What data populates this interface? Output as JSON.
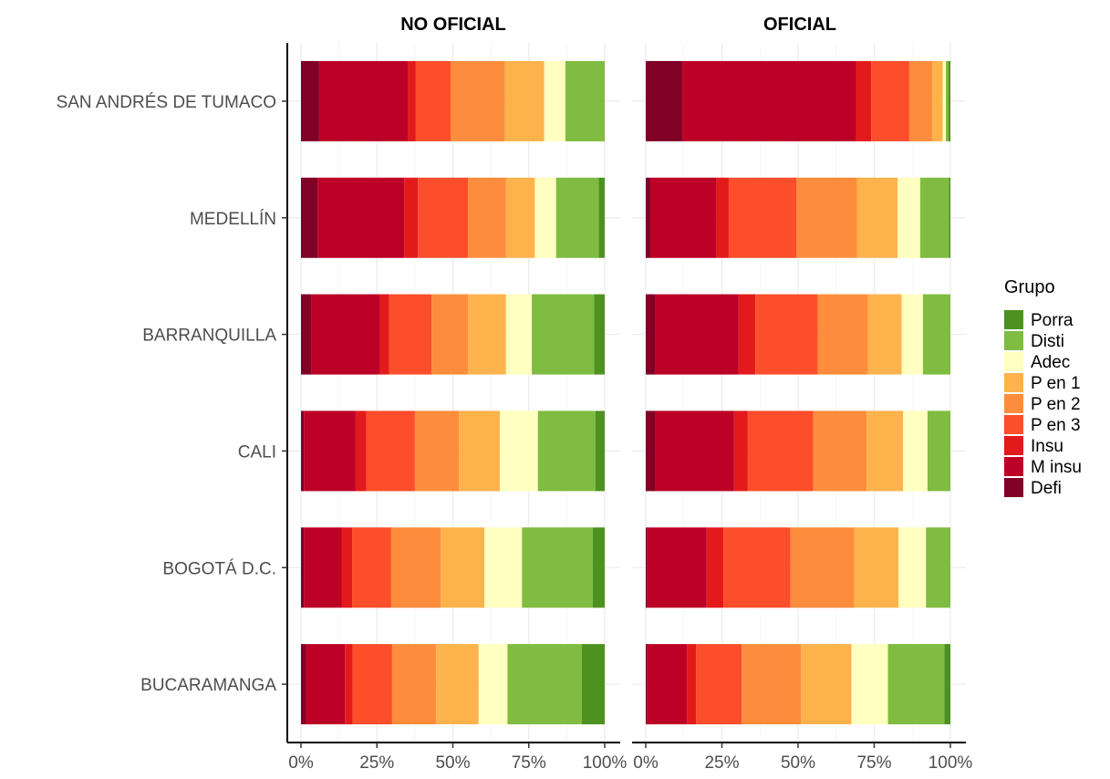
{
  "chart_data": {
    "type": "bar",
    "orientation": "horizontal",
    "stacked": "percent",
    "panels": [
      "NO OFICIAL",
      "OFICIAL"
    ],
    "categories": [
      "SAN ANDRÉS DE TUMACO",
      "MEDELLÍN",
      "BARRANQUILLA",
      "CALI",
      "BOGOTÁ D.C.",
      "BUCARAMANGA"
    ],
    "xticks": [
      "0%",
      "25%",
      "50%",
      "75%",
      "100%"
    ],
    "xlim": [
      0,
      100
    ],
    "grid": true,
    "legend": {
      "title": "Grupo",
      "placement": "right",
      "entries": [
        "Porra",
        "Disti",
        "Adec",
        "P en 1",
        "P en 2",
        "P en 3",
        "Insu",
        "M insu",
        "Defi"
      ]
    },
    "series_order_left_to_right": [
      "Defi",
      "M insu",
      "Insu",
      "P en 3",
      "P en 2",
      "P en 1",
      "Adec",
      "Disti",
      "Porra"
    ],
    "colors": {
      "Defi": "#800026",
      "M insu": "#bd0026",
      "Insu": "#e31a1c",
      "P en 3": "#fc4e2a",
      "P en 2": "#fd8d3c",
      "P en 1": "#feb24c",
      "Adec": "#ffffbf",
      "Disti": "#7fbc41",
      "Porra": "#4d9221"
    },
    "values": {
      "NO OFICIAL": {
        "SAN ANDRÉS DE TUMACO": [
          6,
          29.5,
          2.5,
          11.5,
          18,
          13,
          7,
          13,
          0
        ],
        "MEDELLÍN": [
          5.5,
          28.5,
          4.5,
          16.5,
          12.5,
          9.5,
          7,
          14,
          2
        ],
        "BARRANQUILLA": [
          3.5,
          22.5,
          3,
          14,
          12,
          12.5,
          8.5,
          20.5,
          3.5
        ],
        "CALI": [
          1,
          17,
          3.5,
          16,
          14.5,
          13.5,
          12.5,
          19,
          3
        ],
        "BOGOTÁ D.C.": [
          1,
          12.5,
          3.5,
          13,
          16.5,
          14.5,
          12.5,
          23.5,
          4
        ],
        "BUCARAMANGA": [
          1.5,
          13,
          2.5,
          13,
          14.5,
          14,
          9.5,
          24.5,
          7.5
        ]
      },
      "OFICIAL": {
        "SAN ANDRÉS DE TUMACO": [
          12,
          57,
          5,
          12.5,
          7.5,
          3.5,
          1,
          0.8,
          0.7
        ],
        "MEDELLÍN": [
          1.5,
          22,
          4,
          22.5,
          20,
          13.5,
          7.5,
          9.5,
          0.5
        ],
        "BARRANQUILLA": [
          3,
          27.5,
          5.5,
          20.5,
          16.5,
          11,
          7,
          9,
          0
        ],
        "CALI": [
          3,
          26,
          4.5,
          21.5,
          17.5,
          12,
          8,
          7.5,
          0
        ],
        "BOGOTÁ D.C.": [
          0.5,
          19.5,
          5.5,
          22,
          21,
          14.5,
          9,
          8,
          0
        ],
        "BUCARAMANGA": [
          0.5,
          13,
          3,
          15,
          19.5,
          16.5,
          12,
          18.5,
          2
        ]
      }
    }
  }
}
